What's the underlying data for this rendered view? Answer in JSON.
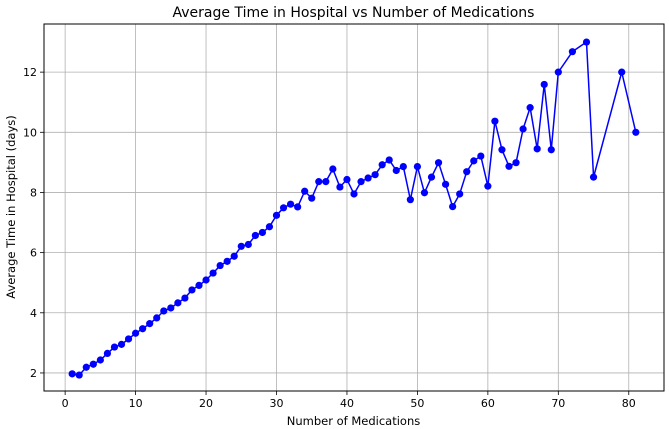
{
  "chart_data": {
    "type": "line",
    "title": "Average Time in Hospital vs Number of Medications",
    "xlabel": "Number of Medications",
    "ylabel": "Average Time in Hospital (days)",
    "xlim": [
      -3,
      85
    ],
    "ylim": [
      1.4,
      13.6
    ],
    "xticks": [
      0,
      10,
      20,
      30,
      40,
      50,
      60,
      70,
      80
    ],
    "yticks": [
      2,
      4,
      6,
      8,
      10,
      12
    ],
    "grid": true,
    "series": [
      {
        "color": "#0000ff",
        "marker": "circle",
        "x": [
          1,
          2,
          3,
          4,
          5,
          6,
          7,
          8,
          9,
          10,
          11,
          12,
          13,
          14,
          15,
          16,
          17,
          18,
          19,
          20,
          21,
          22,
          23,
          24,
          25,
          26,
          27,
          28,
          29,
          30,
          31,
          32,
          33,
          34,
          35,
          36,
          37,
          38,
          39,
          40,
          41,
          42,
          43,
          44,
          45,
          46,
          47,
          48,
          49,
          50,
          51,
          52,
          53,
          54,
          55,
          56,
          57,
          58,
          59,
          60,
          61,
          62,
          63,
          64,
          65,
          66,
          67,
          68,
          69,
          70,
          72,
          74,
          75,
          79,
          81
        ],
        "y": [
          1.97,
          1.93,
          2.19,
          2.29,
          2.43,
          2.65,
          2.86,
          2.95,
          3.13,
          3.32,
          3.47,
          3.64,
          3.83,
          4.06,
          4.16,
          4.33,
          4.49,
          4.76,
          4.91,
          5.09,
          5.32,
          5.57,
          5.71,
          5.88,
          6.21,
          6.27,
          6.57,
          6.67,
          6.86,
          7.24,
          7.49,
          7.61,
          7.52,
          8.04,
          7.81,
          8.36,
          8.36,
          8.78,
          8.18,
          8.43,
          7.95,
          8.36,
          8.48,
          8.59,
          8.92,
          9.08,
          8.73,
          8.86,
          7.76,
          8.86,
          7.99,
          8.51,
          8.99,
          8.27,
          7.53,
          7.95,
          8.69,
          9.05,
          9.21,
          8.21,
          10.37,
          9.42,
          8.87,
          8.99,
          10.11,
          10.82,
          9.45,
          11.59,
          9.42,
          12.0,
          12.68,
          13.0,
          8.51,
          12.0,
          10.0
        ]
      }
    ]
  }
}
